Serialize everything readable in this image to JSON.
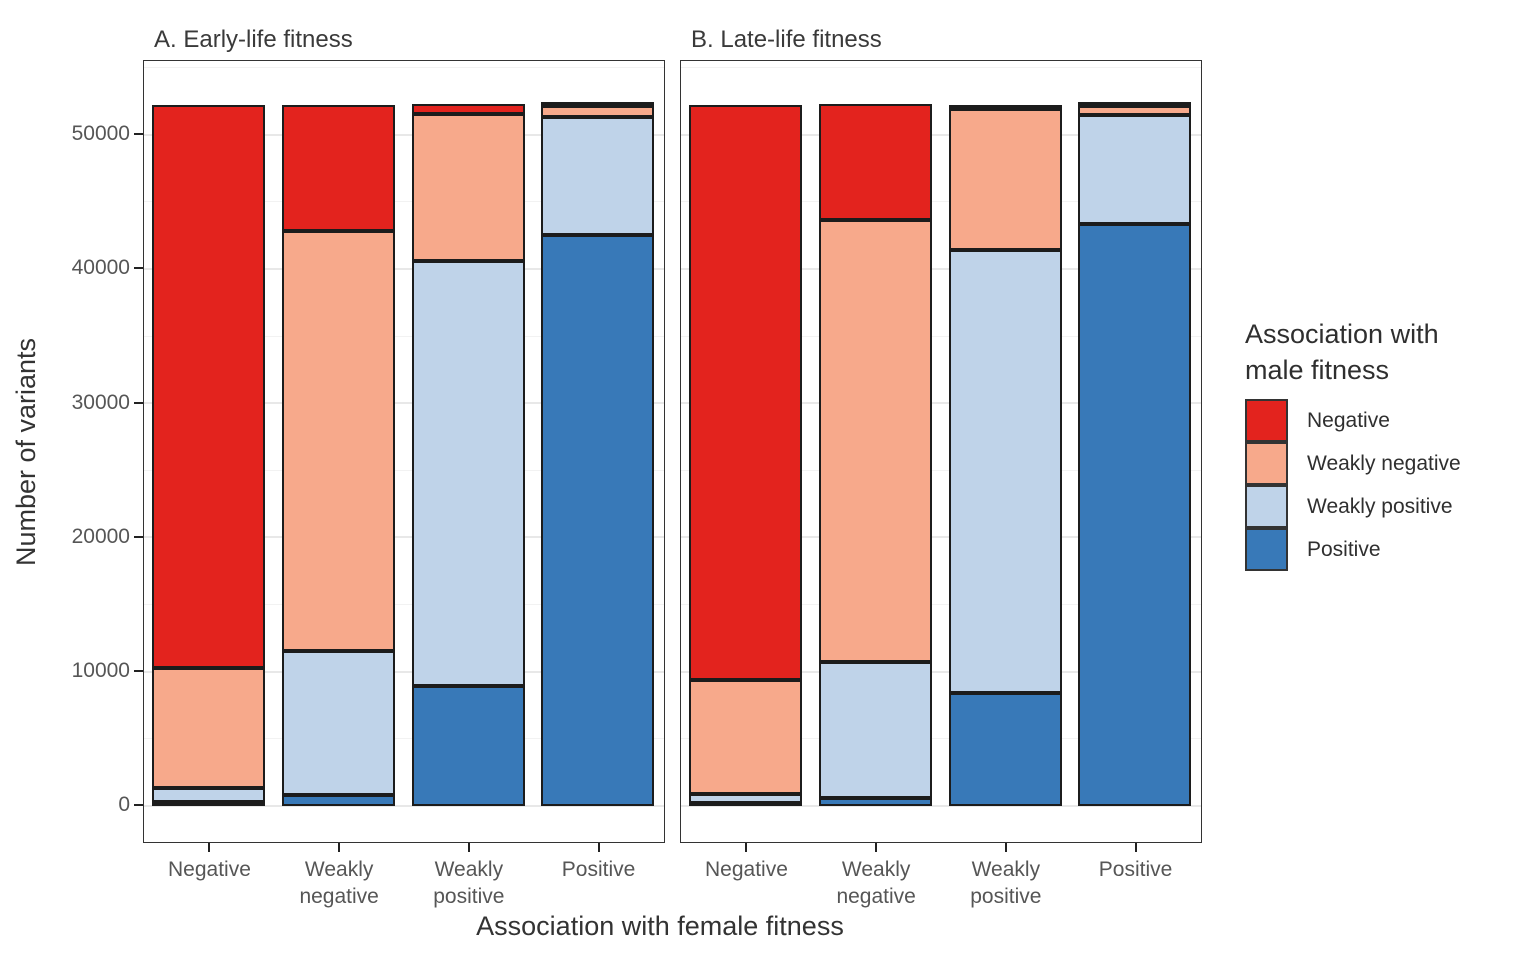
{
  "chart_data": {
    "type": "bar",
    "stacked": true,
    "xlabel": "Association with female fitness",
    "ylabel": "Number of variants",
    "x_categories": [
      "Negative",
      "Weakly negative",
      "Weakly positive",
      "Positive"
    ],
    "x_tick_label_lines": [
      [
        "Negative"
      ],
      [
        "Weakly",
        "negative"
      ],
      [
        "Weakly",
        "positive"
      ],
      [
        "Positive"
      ]
    ],
    "yticks": [
      {
        "value": 0,
        "label": "0"
      },
      {
        "value": 10000,
        "label": "10000"
      },
      {
        "value": 20000,
        "label": "20000"
      },
      {
        "value": 30000,
        "label": "30000"
      },
      {
        "value": 40000,
        "label": "40000"
      },
      {
        "value": 50000,
        "label": "50000"
      }
    ],
    "y_axis_displayed_range": [
      -2700,
      55400
    ],
    "gridlines": {
      "major": [
        0,
        10000,
        20000,
        30000,
        40000,
        50000
      ],
      "minor": [
        5000,
        15000,
        25000,
        35000,
        45000,
        55000
      ]
    },
    "bar_total_per_category": 52250,
    "stack_order_bottom_to_top": [
      "Positive",
      "Weakly positive",
      "Weakly negative",
      "Negative"
    ],
    "panels": [
      {
        "id": "A",
        "title": "A. Early-life fitness",
        "series": [
          {
            "name": "Negative",
            "values": [
              41950,
              9450,
              700,
              100
            ]
          },
          {
            "name": "Weakly negative",
            "values": [
              9000,
              31300,
              10950,
              800
            ]
          },
          {
            "name": "Weakly positive",
            "values": [
              1000,
              10700,
              31700,
              8850
            ]
          },
          {
            "name": "Positive",
            "values": [
              300,
              800,
              8900,
              42500
            ]
          }
        ]
      },
      {
        "id": "B",
        "title": "B. Late-life fitness",
        "series": [
          {
            "name": "Negative",
            "values": [
              42850,
              8600,
              300,
              100
            ]
          },
          {
            "name": "Weakly negative",
            "values": [
              8500,
              32950,
              10550,
              650
            ]
          },
          {
            "name": "Weakly positive",
            "values": [
              700,
              10100,
              33000,
              8150
            ]
          },
          {
            "name": "Positive",
            "values": [
              200,
              600,
              8400,
              43350
            ]
          }
        ]
      }
    ],
    "legend": {
      "title": "Association with male fitness",
      "position": "right",
      "entries": [
        {
          "label": "Negative",
          "color": "#e3231e"
        },
        {
          "label": "Weakly negative",
          "color": "#f7a98b"
        },
        {
          "label": "Weakly positive",
          "color": "#bfd3e9"
        },
        {
          "label": "Positive",
          "color": "#3879b8"
        }
      ]
    },
    "colors": {
      "bar_outline": "#1c1c1c",
      "panel_border": "#333333",
      "grid_major": "#e8e8e8",
      "grid_minor": "#f2f2f2",
      "tick_mark": "#222222",
      "tick_text": "#565656",
      "title_text": "#333333"
    }
  }
}
